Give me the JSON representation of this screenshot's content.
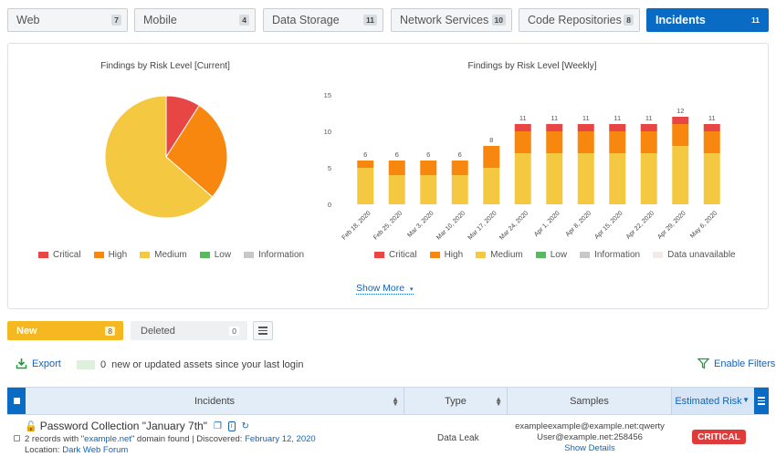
{
  "tabs": [
    {
      "label": "Web",
      "count": "7",
      "active": false
    },
    {
      "label": "Mobile",
      "count": "4",
      "active": false
    },
    {
      "label": "Data Storage",
      "count": "11",
      "active": false
    },
    {
      "label": "Network Services",
      "count": "10",
      "active": false
    },
    {
      "label": "Code Repositories",
      "count": "8",
      "active": false
    },
    {
      "label": "Incidents",
      "count": "11",
      "active": true
    }
  ],
  "colors": {
    "critical": "#e84545",
    "high": "#f7870f",
    "medium": "#f5c842",
    "low": "#5cb85c",
    "information": "#c8c8c8",
    "unavailable": "#f0ebe8",
    "accent": "#0a6bc4"
  },
  "chart_data": [
    {
      "type": "pie",
      "title": "Findings by Risk Level [Current]",
      "labels": [
        "Critical",
        "High",
        "Medium",
        "Low",
        "Information"
      ],
      "values": [
        1,
        3,
        7,
        0,
        0
      ]
    },
    {
      "type": "bar",
      "stacked": true,
      "title": "Findings by Risk Level [Weekly]",
      "categories": [
        "Feb 18, 2020",
        "Feb 25, 2020",
        "Mar 3, 2020",
        "Mar 10, 2020",
        "Mar 17, 2020",
        "Mar 24, 2020",
        "Apr 1, 2020",
        "Apr 8, 2020",
        "Apr 15, 2020",
        "Apr 22, 2020",
        "Apr 29, 2020",
        "May 6, 2020"
      ],
      "series": [
        {
          "name": "Critical",
          "values": [
            0,
            0,
            0,
            0,
            0,
            1,
            1,
            1,
            1,
            1,
            1,
            1
          ]
        },
        {
          "name": "High",
          "values": [
            1,
            2,
            2,
            2,
            3,
            3,
            3,
            3,
            3,
            3,
            3,
            3
          ]
        },
        {
          "name": "Medium",
          "values": [
            5,
            4,
            4,
            4,
            5,
            7,
            7,
            7,
            7,
            7,
            8,
            7
          ]
        },
        {
          "name": "Low",
          "values": [
            0,
            0,
            0,
            0,
            0,
            0,
            0,
            0,
            0,
            0,
            0,
            0
          ]
        },
        {
          "name": "Information",
          "values": [
            0,
            0,
            0,
            0,
            0,
            0,
            0,
            0,
            0,
            0,
            0,
            0
          ]
        },
        {
          "name": "Data unavailable",
          "values": [
            0,
            0,
            0,
            0,
            0,
            0,
            0,
            0,
            0,
            0,
            0,
            0
          ]
        }
      ],
      "totals": [
        "6",
        "6",
        "6",
        "6",
        "8",
        "11",
        "11",
        "11",
        "11",
        "11",
        "12",
        "11"
      ],
      "ylim": [
        0,
        15
      ],
      "yticks": [
        "0",
        "5",
        "10",
        "15"
      ],
      "grid": false
    }
  ],
  "show_more": "Show More",
  "segments": {
    "new_label": "New",
    "new_count": "8",
    "deleted_label": "Deleted",
    "deleted_count": "0"
  },
  "toolbar": {
    "export": "Export",
    "new_assets_count": "0",
    "new_assets_text": "new or updated assets since your last login",
    "enable_filters": "Enable Filters"
  },
  "table": {
    "headers": {
      "incidents": "Incidents",
      "type": "Type",
      "samples": "Samples",
      "risk": "Estimated Risk"
    },
    "rows": [
      {
        "title": "Password Collection \"January 7th\"",
        "records_prefix": "2 records with \"",
        "domain": "example.net",
        "records_suffix": "\" domain found | Discovered: ",
        "discovered": "February 12, 2020",
        "location_label": "Location: ",
        "location": "Dark Web Forum",
        "type": "Data Leak",
        "sample1": "exampleexample@example.net:qwerty",
        "sample2": "User@example.net:258456",
        "show_details": "Show Details",
        "risk": "CRITICAL"
      }
    ]
  }
}
